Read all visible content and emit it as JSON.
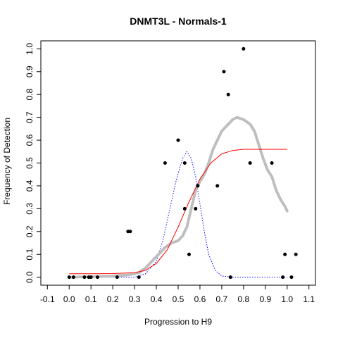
{
  "chart_data": {
    "type": "scatter",
    "title": "DNMT3L - Normals-1",
    "xlabel": "Progression to H9",
    "ylabel": "Frequency of Detection",
    "xlim": [
      -0.13,
      1.13
    ],
    "ylim": [
      -0.035,
      1.035
    ],
    "xticks": [
      "-0.1",
      "0.0",
      "0.1",
      "0.2",
      "0.3",
      "0.4",
      "0.5",
      "0.6",
      "0.7",
      "0.8",
      "0.9",
      "1.0",
      "1.1"
    ],
    "yticks": [
      "0.0",
      "0.1",
      "0.2",
      "0.3",
      "0.4",
      "0.5",
      "0.6",
      "0.7",
      "0.8",
      "0.9",
      "1.0"
    ],
    "grid": false,
    "legend": "none",
    "colors": {
      "points": "#000000",
      "smooth": "#bebebe",
      "logistic": "#ff0000",
      "density": "#0000ff"
    },
    "series": [
      {
        "type": "scatter",
        "points": [
          [
            0.0,
            0.0
          ],
          [
            0.02,
            0.0
          ],
          [
            0.07,
            0.0
          ],
          [
            0.09,
            0.0
          ],
          [
            0.1,
            0.0
          ],
          [
            0.13,
            0.0
          ],
          [
            0.22,
            0.0
          ],
          [
            0.32,
            0.0
          ],
          [
            0.27,
            0.2
          ],
          [
            0.28,
            0.2
          ],
          [
            0.44,
            0.5
          ],
          [
            0.5,
            0.6
          ],
          [
            0.53,
            0.5
          ],
          [
            0.53,
            0.3
          ],
          [
            0.55,
            0.1
          ],
          [
            0.58,
            0.3
          ],
          [
            0.59,
            0.4
          ],
          [
            0.68,
            0.4
          ],
          [
            0.71,
            0.9
          ],
          [
            0.73,
            0.8
          ],
          [
            0.74,
            0.0
          ],
          [
            0.8,
            1.0
          ],
          [
            0.83,
            0.5
          ],
          [
            0.93,
            0.5
          ],
          [
            0.98,
            0.0
          ],
          [
            0.99,
            0.1
          ],
          [
            1.02,
            0.0
          ],
          [
            1.04,
            0.1
          ]
        ]
      },
      {
        "type": "line",
        "style": "dots",
        "points": [
          [
            0.0,
            0.0
          ],
          [
            0.1,
            0.002
          ],
          [
            0.2,
            0.005
          ],
          [
            0.27,
            0.01
          ],
          [
            0.3,
            0.015
          ],
          [
            0.32,
            0.02
          ],
          [
            0.35,
            0.04
          ],
          [
            0.38,
            0.07
          ],
          [
            0.41,
            0.1
          ],
          [
            0.44,
            0.13
          ],
          [
            0.47,
            0.15
          ],
          [
            0.5,
            0.16
          ],
          [
            0.52,
            0.18
          ],
          [
            0.54,
            0.22
          ],
          [
            0.56,
            0.3
          ],
          [
            0.58,
            0.38
          ],
          [
            0.6,
            0.42
          ],
          [
            0.62,
            0.45
          ],
          [
            0.64,
            0.5
          ],
          [
            0.66,
            0.56
          ],
          [
            0.68,
            0.6
          ],
          [
            0.7,
            0.64
          ],
          [
            0.72,
            0.66
          ],
          [
            0.75,
            0.69
          ],
          [
            0.77,
            0.7
          ],
          [
            0.8,
            0.69
          ],
          [
            0.83,
            0.67
          ],
          [
            0.85,
            0.64
          ],
          [
            0.87,
            0.58
          ],
          [
            0.89,
            0.52
          ],
          [
            0.91,
            0.47
          ],
          [
            0.93,
            0.44
          ],
          [
            0.95,
            0.38
          ],
          [
            0.97,
            0.34
          ],
          [
            0.99,
            0.31
          ],
          [
            1.0,
            0.29
          ]
        ]
      },
      {
        "type": "line",
        "style": "solid",
        "points": [
          [
            0.0,
            0.015
          ],
          [
            0.1,
            0.015
          ],
          [
            0.2,
            0.016
          ],
          [
            0.3,
            0.02
          ],
          [
            0.35,
            0.03
          ],
          [
            0.4,
            0.06
          ],
          [
            0.45,
            0.12
          ],
          [
            0.5,
            0.22
          ],
          [
            0.55,
            0.33
          ],
          [
            0.6,
            0.43
          ],
          [
            0.65,
            0.5
          ],
          [
            0.7,
            0.54
          ],
          [
            0.75,
            0.555
          ],
          [
            0.8,
            0.56
          ],
          [
            0.9,
            0.56
          ],
          [
            1.0,
            0.56
          ]
        ]
      },
      {
        "type": "line",
        "style": "dotted",
        "points": [
          [
            0.0,
            0.0
          ],
          [
            0.3,
            0.0
          ],
          [
            0.35,
            0.015
          ],
          [
            0.4,
            0.07
          ],
          [
            0.43,
            0.16
          ],
          [
            0.46,
            0.29
          ],
          [
            0.49,
            0.42
          ],
          [
            0.52,
            0.52
          ],
          [
            0.54,
            0.55
          ],
          [
            0.56,
            0.52
          ],
          [
            0.58,
            0.44
          ],
          [
            0.6,
            0.32
          ],
          [
            0.62,
            0.2
          ],
          [
            0.64,
            0.1
          ],
          [
            0.67,
            0.03
          ],
          [
            0.7,
            0.005
          ],
          [
            0.75,
            0.0
          ],
          [
            1.0,
            0.0
          ]
        ]
      }
    ]
  }
}
